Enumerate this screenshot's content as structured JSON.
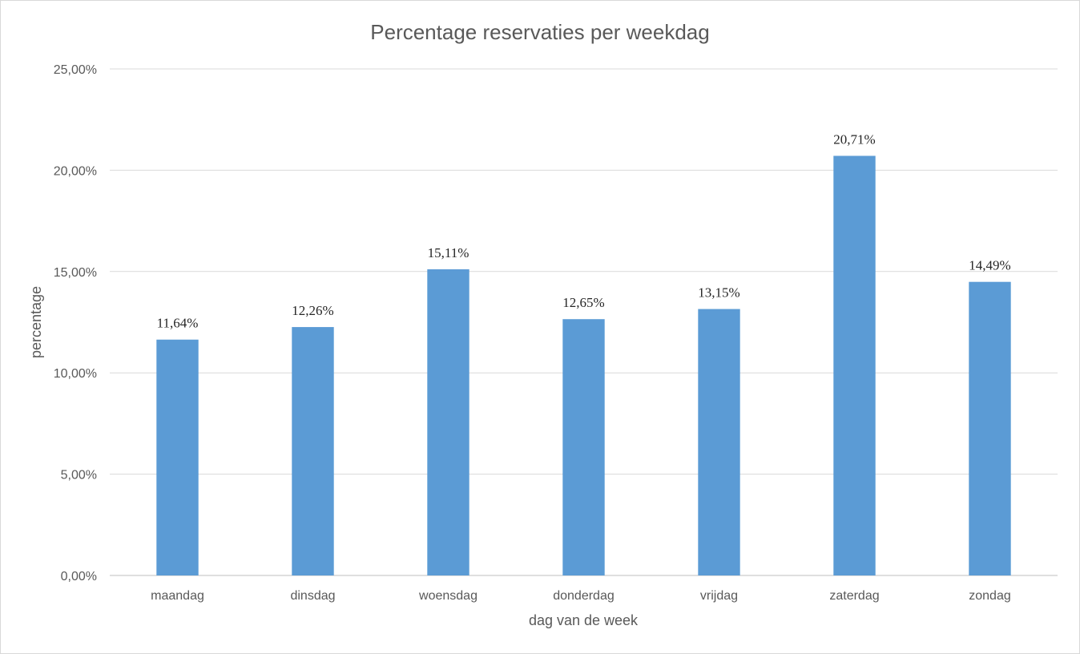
{
  "chart_data": {
    "type": "bar",
    "title": "Percentage reservaties per weekdag",
    "xlabel": "dag van de week",
    "ylabel": "percentage",
    "categories": [
      "maandag",
      "dinsdag",
      "woensdag",
      "donderdag",
      "vrijdag",
      "zaterdag",
      "zondag"
    ],
    "values": [
      11.64,
      12.26,
      15.11,
      12.65,
      13.15,
      20.71,
      14.49
    ],
    "data_labels": [
      "11,64%",
      "12,26%",
      "15,11%",
      "12,65%",
      "13,15%",
      "20,71%",
      "14,49%"
    ],
    "ylim": [
      0,
      25
    ],
    "yticks": [
      0,
      5,
      10,
      15,
      20,
      25
    ],
    "ytick_labels": [
      "0,00%",
      "5,00%",
      "10,00%",
      "15,00%",
      "20,00%",
      "25,00%"
    ],
    "grid": true,
    "legend": false,
    "bar_color": "#5b9bd5"
  }
}
